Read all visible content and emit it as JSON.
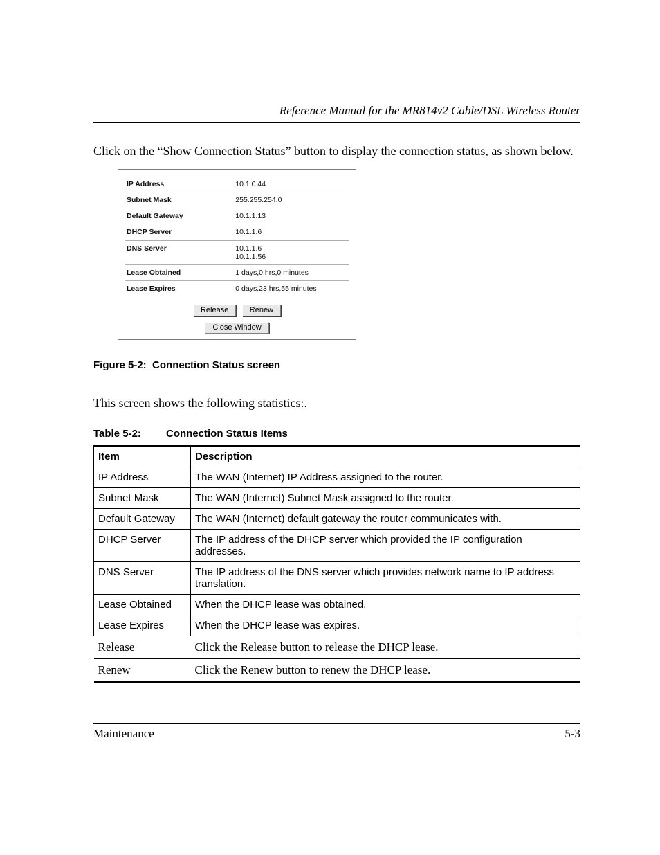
{
  "header": {
    "running_title": "Reference Manual for the MR814v2 Cable/DSL Wireless Router"
  },
  "intro_text": "Click on the “Show Connection Status” button to display the connection status, as shown below.",
  "figure": {
    "rows": [
      {
        "label": "IP Address",
        "value": "10.1.0.44"
      },
      {
        "label": "Subnet Mask",
        "value": "255.255.254.0"
      },
      {
        "label": "Default Gateway",
        "value": "10.1.1.13"
      },
      {
        "label": "DHCP Server",
        "value": "10.1.1.6"
      },
      {
        "label": "DNS Server",
        "value": "10.1.1.6\n10.1.1.56"
      },
      {
        "label": "Lease Obtained",
        "value": "1 days,0 hrs,0 minutes"
      },
      {
        "label": "Lease Expires",
        "value": "0 days,23 hrs,55 minutes"
      }
    ],
    "buttons": {
      "release": "Release",
      "renew": "Renew",
      "close": "Close Window"
    },
    "caption_num": "Figure 5-2:",
    "caption_text": "Connection Status screen"
  },
  "lead_text": "This screen shows the following statistics:.",
  "table": {
    "caption_num": "Table 5-2:",
    "caption_text": "Connection Status Items",
    "head": {
      "c1": "Item",
      "c2": "Description"
    },
    "rows": [
      {
        "item": "IP Address",
        "desc": "The WAN (Internet) IP Address assigned to the router.",
        "serif": false
      },
      {
        "item": "Subnet Mask",
        "desc": "The WAN (Internet) Subnet Mask assigned to the router.",
        "serif": false
      },
      {
        "item": "Default Gateway",
        "desc": "The WAN (Internet) default gateway the router communicates with.",
        "serif": false
      },
      {
        "item": "DHCP Server",
        "desc": "The IP address of the DHCP server which provided the IP configuration addresses.",
        "serif": false
      },
      {
        "item": "DNS Server",
        "desc": "The IP address of the DNS server which provides network name to IP address translation.",
        "serif": false
      },
      {
        "item": "Lease Obtained",
        "desc": "When the DHCP lease was obtained.",
        "serif": false
      },
      {
        "item": "Lease Expires",
        "desc": "When the DHCP lease was expires.",
        "serif": false
      },
      {
        "item": "Release",
        "desc": "Click the Release button to release the DHCP lease.",
        "serif": true
      },
      {
        "item": "Renew",
        "desc": "Click the Renew button to renew the DHCP lease.",
        "serif": true
      }
    ]
  },
  "footer": {
    "section": "Maintenance",
    "page": "5-3"
  }
}
